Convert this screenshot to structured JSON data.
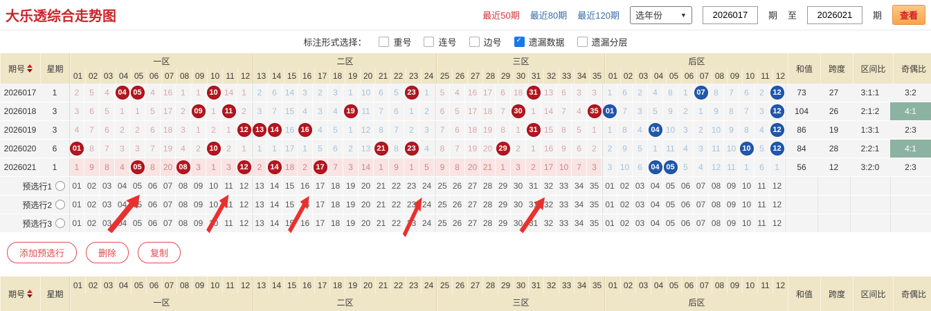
{
  "header": {
    "title": "大乐透综合走势图",
    "links": [
      {
        "label": "最近50期",
        "active": true
      },
      {
        "label": "最近80期",
        "active": false
      },
      {
        "label": "最近120期",
        "active": false
      }
    ],
    "year_select": "选年份",
    "from_value": "2026017",
    "qi_label": "期",
    "to_label": "至",
    "to_value": "2026021",
    "qi_label2": "期",
    "view_button": "查看",
    "accent_red": "#c9252b",
    "link_blue": "#3a6ca8"
  },
  "filter": {
    "label": "标注形式选择：",
    "options": [
      {
        "label": "重号",
        "checked": false
      },
      {
        "label": "连号",
        "checked": false
      },
      {
        "label": "边号",
        "checked": false
      },
      {
        "label": "遗漏数据",
        "checked": true
      },
      {
        "label": "遗漏分层",
        "checked": false
      }
    ]
  },
  "table": {
    "issue_header": "期号",
    "week_header": "星期",
    "zones": [
      {
        "label": "一区",
        "cols": [
          "01",
          "02",
          "03",
          "04",
          "05",
          "06",
          "07",
          "08",
          "09",
          "10",
          "11",
          "12"
        ]
      },
      {
        "label": "二区",
        "cols": [
          "13",
          "14",
          "15",
          "16",
          "17",
          "18",
          "19",
          "20",
          "21",
          "22",
          "23",
          "24"
        ]
      },
      {
        "label": "三区",
        "cols": [
          "25",
          "26",
          "27",
          "28",
          "29",
          "30",
          "31",
          "32",
          "33",
          "34",
          "35"
        ]
      },
      {
        "label": "后区",
        "cols": [
          "01",
          "02",
          "03",
          "04",
          "05",
          "06",
          "07",
          "08",
          "09",
          "10",
          "11",
          "12"
        ]
      }
    ],
    "summary_headers": [
      "和值",
      "跨度",
      "区间比",
      "奇偶比"
    ],
    "rows": [
      {
        "issue": "2026017",
        "week": "1",
        "z": [
          [
            "2",
            "5",
            "4",
            {
              "b": "04"
            },
            {
              "b": "05"
            },
            "4",
            "16",
            "1",
            "1",
            {
              "b": "10"
            },
            "14",
            "1"
          ],
          [
            "2",
            "6",
            "14",
            "3",
            "2",
            "3",
            "1",
            "10",
            "6",
            "5",
            {
              "b": "23"
            },
            "1"
          ],
          [
            "5",
            "4",
            "16",
            "17",
            "6",
            "18",
            {
              "b": "31"
            },
            "13",
            "6",
            "3",
            "3"
          ],
          [
            "1",
            "6",
            "2",
            "4",
            "8",
            "1",
            {
              "b": "07"
            },
            "8",
            "7",
            "6",
            "2",
            {
              "b": "12"
            }
          ]
        ],
        "sum": "73",
        "span": "27",
        "ratio": "3:1:1",
        "oe": "3:2",
        "oe_green": false,
        "hl": false
      },
      {
        "issue": "2026018",
        "week": "3",
        "z": [
          [
            "3",
            "6",
            "5",
            "1",
            "1",
            "5",
            "17",
            "2",
            {
              "b": "09"
            },
            "1",
            {
              "b": "11"
            },
            "2"
          ],
          [
            "3",
            "7",
            "15",
            "4",
            "3",
            "4",
            {
              "b": "19"
            },
            "11",
            "7",
            "6",
            "1",
            "2"
          ],
          [
            "6",
            "5",
            "17",
            "18",
            "7",
            {
              "b": "30"
            },
            "1",
            "14",
            "7",
            "4",
            {
              "b": "35"
            }
          ],
          [
            {
              "b": "01"
            },
            "7",
            "3",
            "5",
            "9",
            "2",
            "1",
            "9",
            "8",
            "7",
            "3",
            {
              "b": "12"
            }
          ]
        ],
        "sum": "104",
        "span": "26",
        "ratio": "2:1:2",
        "oe": "4:1",
        "oe_green": true,
        "hl": false
      },
      {
        "issue": "2026019",
        "week": "3",
        "z": [
          [
            "4",
            "7",
            "6",
            "2",
            "2",
            "6",
            "18",
            "3",
            "1",
            "2",
            "1",
            {
              "b": "12"
            }
          ],
          [
            {
              "b": "13"
            },
            {
              "b": "14"
            },
            "16",
            {
              "b": "16"
            },
            "4",
            "5",
            "1",
            "12",
            "8",
            "7",
            "2",
            "3"
          ],
          [
            "7",
            "6",
            "18",
            "19",
            "8",
            "1",
            {
              "b": "31"
            },
            "15",
            "8",
            "5",
            "1"
          ],
          [
            "1",
            "8",
            "4",
            {
              "b": "04"
            },
            "10",
            "3",
            "2",
            "10",
            "9",
            "8",
            "4",
            {
              "b": "12"
            }
          ]
        ],
        "sum": "86",
        "span": "19",
        "ratio": "1:3:1",
        "oe": "2:3",
        "oe_green": false,
        "hl": false
      },
      {
        "issue": "2026020",
        "week": "6",
        "z": [
          [
            {
              "b": "01"
            },
            "8",
            "7",
            "3",
            "3",
            "7",
            "19",
            "4",
            "2",
            {
              "b": "10"
            },
            "2",
            "1"
          ],
          [
            "1",
            "1",
            "17",
            "1",
            "5",
            "6",
            "2",
            "13",
            {
              "b": "21"
            },
            "8",
            {
              "b": "23"
            },
            "4"
          ],
          [
            "8",
            "7",
            "19",
            "20",
            {
              "b": "29"
            },
            "2",
            "1",
            "16",
            "9",
            "6",
            "2"
          ],
          [
            "2",
            "9",
            "5",
            "1",
            "11",
            "4",
            "3",
            "11",
            "10",
            {
              "b": "10"
            },
            "5",
            {
              "b": "12"
            }
          ]
        ],
        "sum": "84",
        "span": "28",
        "ratio": "2:2:1",
        "oe": "4:1",
        "oe_green": true,
        "hl": false
      },
      {
        "issue": "2026021",
        "week": "1",
        "z": [
          [
            "1",
            "9",
            "8",
            "4",
            {
              "b": "05"
            },
            "8",
            "20",
            {
              "b": "08"
            },
            "3",
            "1",
            "3",
            {
              "b": "12"
            }
          ],
          [
            "2",
            {
              "b": "14"
            },
            "18",
            "2",
            {
              "b": "17"
            },
            "7",
            "3",
            "14",
            "1",
            "9",
            "1",
            "5"
          ],
          [
            "9",
            "8",
            "20",
            "21",
            "1",
            "3",
            "2",
            "17",
            "10",
            "7",
            "3"
          ],
          [
            "3",
            "10",
            "6",
            {
              "b": "04"
            },
            {
              "b": "05"
            },
            "5",
            "4",
            "12",
            "11",
            "1",
            "6",
            "1"
          ]
        ],
        "sum": "56",
        "span": "12",
        "ratio": "3:2:0",
        "oe": "2:3",
        "oe_green": false,
        "hl": true
      }
    ]
  },
  "preselect": {
    "rows": [
      {
        "label": "预选行1"
      },
      {
        "label": "预选行2"
      },
      {
        "label": "预选行3"
      }
    ]
  },
  "actions": {
    "add": "添加预选行",
    "del": "删除",
    "copy": "复制"
  },
  "annotations": {
    "red_arrow_count": 5
  },
  "colors": {
    "header_bg": "#efe5c7",
    "front_ball": "#b5161f",
    "back_ball": "#2058ae",
    "oe_highlight": "#8cb3a2",
    "miss_red": "#dca6a6",
    "miss_blue": "#a6c2dc",
    "row_highlight": "#f9e4e4"
  }
}
